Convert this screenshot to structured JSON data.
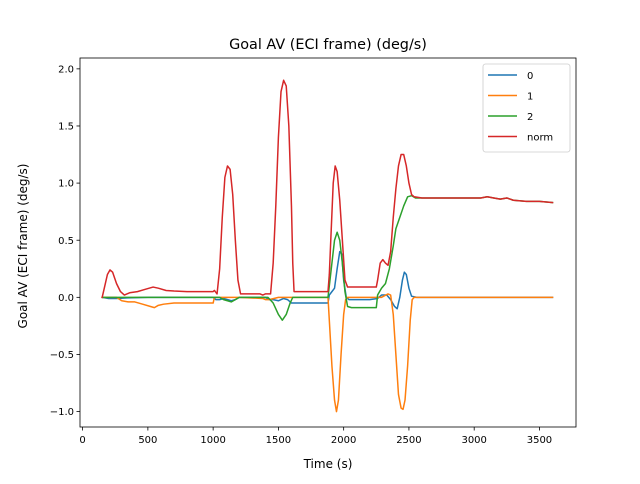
{
  "chart_data": {
    "type": "line",
    "title": "Goal AV (ECI frame) (deg/s)",
    "xlabel": "Time (s)",
    "ylabel": "Goal AV (ECI frame) (deg/s)",
    "xlim": [
      -20,
      3780
    ],
    "ylim": [
      -1.135,
      2.095
    ],
    "xticks": [
      0,
      500,
      1000,
      1500,
      2000,
      2500,
      3000,
      3500
    ],
    "xtick_labels": [
      "0",
      "500",
      "1000",
      "1500",
      "2000",
      "2500",
      "3000",
      "3500"
    ],
    "yticks": [
      -1.0,
      -0.5,
      0.0,
      0.5,
      1.0,
      1.5,
      2.0
    ],
    "ytick_labels": [
      "−1.0",
      "−0.5",
      "0.0",
      "0.5",
      "1.0",
      "1.5",
      "2.0"
    ],
    "grid": false,
    "legend_position": "top-right",
    "series": [
      {
        "name": "0",
        "color": "#1f77b4",
        "points": [
          [
            150,
            0.0
          ],
          [
            200,
            -0.01
          ],
          [
            260,
            -0.01
          ],
          [
            340,
            -0.005
          ],
          [
            500,
            0.0
          ],
          [
            700,
            0.0
          ],
          [
            1000,
            0.0
          ],
          [
            1020,
            -0.02
          ],
          [
            1050,
            -0.02
          ],
          [
            1080,
            -0.01
          ],
          [
            1110,
            -0.02
          ],
          [
            1140,
            -0.03
          ],
          [
            1170,
            -0.02
          ],
          [
            1200,
            0.0
          ],
          [
            1400,
            0.0
          ],
          [
            1430,
            -0.02
          ],
          [
            1460,
            -0.02
          ],
          [
            1500,
            -0.03
          ],
          [
            1540,
            -0.01
          ],
          [
            1570,
            -0.02
          ],
          [
            1600,
            -0.05
          ],
          [
            1700,
            -0.05
          ],
          [
            1880,
            -0.05
          ],
          [
            1890,
            0.02
          ],
          [
            1910,
            0.05
          ],
          [
            1930,
            0.08
          ],
          [
            1950,
            0.25
          ],
          [
            1970,
            0.4
          ],
          [
            1985,
            0.38
          ],
          [
            2000,
            0.15
          ],
          [
            2020,
            0.0
          ],
          [
            2040,
            -0.02
          ],
          [
            2080,
            -0.02
          ],
          [
            2200,
            -0.02
          ],
          [
            2260,
            -0.01
          ],
          [
            2290,
            0.02
          ],
          [
            2330,
            0.02
          ],
          [
            2360,
            -0.02
          ],
          [
            2390,
            -0.08
          ],
          [
            2410,
            -0.1
          ],
          [
            2430,
            0.0
          ],
          [
            2450,
            0.15
          ],
          [
            2465,
            0.22
          ],
          [
            2480,
            0.2
          ],
          [
            2500,
            0.08
          ],
          [
            2520,
            0.01
          ],
          [
            2560,
            0.0
          ],
          [
            3600,
            0.0
          ]
        ]
      },
      {
        "name": "1",
        "color": "#ff7f0e",
        "points": [
          [
            150,
            0.0
          ],
          [
            200,
            0.0
          ],
          [
            260,
            0.0
          ],
          [
            300,
            -0.03
          ],
          [
            350,
            -0.04
          ],
          [
            400,
            -0.04
          ],
          [
            460,
            -0.06
          ],
          [
            520,
            -0.08
          ],
          [
            550,
            -0.09
          ],
          [
            580,
            -0.07
          ],
          [
            620,
            -0.06
          ],
          [
            700,
            -0.05
          ],
          [
            800,
            -0.05
          ],
          [
            1000,
            -0.05
          ],
          [
            1010,
            0.0
          ],
          [
            1050,
            0.0
          ],
          [
            1200,
            0.0
          ],
          [
            1380,
            -0.01
          ],
          [
            1400,
            -0.02
          ],
          [
            1430,
            -0.02
          ],
          [
            1500,
            0.0
          ],
          [
            1650,
            0.0
          ],
          [
            1880,
            0.0
          ],
          [
            1890,
            -0.2
          ],
          [
            1910,
            -0.6
          ],
          [
            1930,
            -0.9
          ],
          [
            1945,
            -1.0
          ],
          [
            1960,
            -0.9
          ],
          [
            1980,
            -0.5
          ],
          [
            2000,
            -0.15
          ],
          [
            2015,
            -0.02
          ],
          [
            2030,
            0.0
          ],
          [
            2260,
            0.0
          ],
          [
            2290,
            0.0
          ],
          [
            2340,
            0.03
          ],
          [
            2360,
            0.02
          ],
          [
            2380,
            -0.15
          ],
          [
            2400,
            -0.5
          ],
          [
            2420,
            -0.85
          ],
          [
            2440,
            -0.97
          ],
          [
            2455,
            -0.98
          ],
          [
            2470,
            -0.9
          ],
          [
            2490,
            -0.6
          ],
          [
            2510,
            -0.2
          ],
          [
            2525,
            -0.02
          ],
          [
            2540,
            0.0
          ],
          [
            3600,
            0.0
          ]
        ]
      },
      {
        "name": "2",
        "color": "#2ca02c",
        "points": [
          [
            150,
            0.0
          ],
          [
            300,
            0.0
          ],
          [
            500,
            0.0
          ],
          [
            700,
            0.0
          ],
          [
            1000,
            0.0
          ],
          [
            1050,
            0.0
          ],
          [
            1080,
            -0.02
          ],
          [
            1110,
            -0.03
          ],
          [
            1140,
            -0.04
          ],
          [
            1170,
            -0.02
          ],
          [
            1200,
            0.0
          ],
          [
            1420,
            0.0
          ],
          [
            1460,
            -0.05
          ],
          [
            1500,
            -0.15
          ],
          [
            1530,
            -0.2
          ],
          [
            1560,
            -0.15
          ],
          [
            1590,
            -0.05
          ],
          [
            1610,
            0.0
          ],
          [
            1650,
            0.0
          ],
          [
            1880,
            0.0
          ],
          [
            1890,
            0.1
          ],
          [
            1910,
            0.3
          ],
          [
            1930,
            0.5
          ],
          [
            1950,
            0.57
          ],
          [
            1970,
            0.5
          ],
          [
            1990,
            0.3
          ],
          [
            2010,
            0.05
          ],
          [
            2030,
            -0.08
          ],
          [
            2060,
            -0.09
          ],
          [
            2200,
            -0.09
          ],
          [
            2250,
            -0.09
          ],
          [
            2260,
            0.02
          ],
          [
            2290,
            0.08
          ],
          [
            2320,
            0.12
          ],
          [
            2350,
            0.25
          ],
          [
            2380,
            0.45
          ],
          [
            2400,
            0.6
          ],
          [
            2430,
            0.7
          ],
          [
            2460,
            0.8
          ],
          [
            2490,
            0.88
          ],
          [
            2520,
            0.89
          ],
          [
            2550,
            0.87
          ],
          [
            2600,
            0.87
          ],
          [
            2700,
            0.87
          ],
          [
            2800,
            0.87
          ],
          [
            2900,
            0.87
          ],
          [
            3000,
            0.87
          ],
          [
            3050,
            0.87
          ],
          [
            3100,
            0.88
          ],
          [
            3150,
            0.87
          ],
          [
            3200,
            0.86
          ],
          [
            3250,
            0.87
          ],
          [
            3300,
            0.85
          ],
          [
            3400,
            0.84
          ],
          [
            3500,
            0.84
          ],
          [
            3600,
            0.83
          ]
        ]
      },
      {
        "name": "norm",
        "color": "#d62728",
        "points": [
          [
            150,
            0.0
          ],
          [
            170,
            0.1
          ],
          [
            190,
            0.2
          ],
          [
            210,
            0.24
          ],
          [
            230,
            0.22
          ],
          [
            260,
            0.12
          ],
          [
            290,
            0.05
          ],
          [
            320,
            0.02
          ],
          [
            360,
            0.04
          ],
          [
            420,
            0.05
          ],
          [
            480,
            0.07
          ],
          [
            540,
            0.09
          ],
          [
            580,
            0.08
          ],
          [
            640,
            0.06
          ],
          [
            700,
            0.055
          ],
          [
            800,
            0.05
          ],
          [
            1000,
            0.05
          ],
          [
            1010,
            0.06
          ],
          [
            1030,
            0.03
          ],
          [
            1050,
            0.25
          ],
          [
            1070,
            0.7
          ],
          [
            1090,
            1.05
          ],
          [
            1110,
            1.15
          ],
          [
            1130,
            1.12
          ],
          [
            1150,
            0.9
          ],
          [
            1170,
            0.5
          ],
          [
            1190,
            0.15
          ],
          [
            1210,
            0.03
          ],
          [
            1300,
            0.03
          ],
          [
            1360,
            0.03
          ],
          [
            1380,
            0.02
          ],
          [
            1400,
            0.03
          ],
          [
            1440,
            0.03
          ],
          [
            1460,
            0.3
          ],
          [
            1480,
            0.8
          ],
          [
            1500,
            1.4
          ],
          [
            1520,
            1.8
          ],
          [
            1540,
            1.9
          ],
          [
            1560,
            1.85
          ],
          [
            1580,
            1.5
          ],
          [
            1600,
            0.8
          ],
          [
            1610,
            0.3
          ],
          [
            1620,
            0.05
          ],
          [
            1650,
            0.05
          ],
          [
            1880,
            0.05
          ],
          [
            1890,
            0.2
          ],
          [
            1905,
            0.6
          ],
          [
            1920,
            1.0
          ],
          [
            1935,
            1.15
          ],
          [
            1950,
            1.1
          ],
          [
            1970,
            0.85
          ],
          [
            1990,
            0.5
          ],
          [
            2010,
            0.15
          ],
          [
            2030,
            0.09
          ],
          [
            2100,
            0.09
          ],
          [
            2250,
            0.09
          ],
          [
            2260,
            0.15
          ],
          [
            2280,
            0.3
          ],
          [
            2300,
            0.33
          ],
          [
            2320,
            0.3
          ],
          [
            2340,
            0.28
          ],
          [
            2360,
            0.4
          ],
          [
            2380,
            0.7
          ],
          [
            2400,
            0.95
          ],
          [
            2420,
            1.15
          ],
          [
            2440,
            1.25
          ],
          [
            2460,
            1.25
          ],
          [
            2480,
            1.15
          ],
          [
            2500,
            1.0
          ],
          [
            2520,
            0.9
          ],
          [
            2540,
            0.88
          ],
          [
            2600,
            0.87
          ],
          [
            2700,
            0.87
          ],
          [
            2800,
            0.87
          ],
          [
            2900,
            0.87
          ],
          [
            3000,
            0.87
          ],
          [
            3050,
            0.87
          ],
          [
            3100,
            0.88
          ],
          [
            3150,
            0.87
          ],
          [
            3200,
            0.86
          ],
          [
            3250,
            0.87
          ],
          [
            3300,
            0.85
          ],
          [
            3400,
            0.84
          ],
          [
            3500,
            0.84
          ],
          [
            3600,
            0.83
          ]
        ]
      }
    ]
  }
}
